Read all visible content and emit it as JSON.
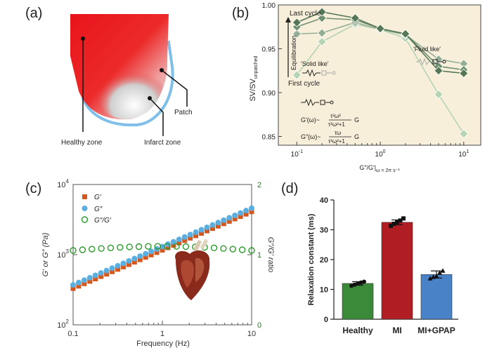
{
  "panels": {
    "a": {
      "label": "(a)",
      "healthy_zone": "Healthy zone",
      "infarct_zone": "Infarct zone",
      "patch": "Patch",
      "colors": {
        "healthy": "#e8141b",
        "infarct": "#dcdcdc",
        "patch": "#7fbfe8"
      }
    },
    "b": {
      "label": "(b)",
      "ylabel": "SV/SV",
      "ylabel_sub": "unpatched",
      "xlabel": "G″/G′|",
      "xlabel_sub": "ω = 2π s⁻¹",
      "last_cycle": "Last cycle",
      "first_cycle": "First cycle",
      "equilibration": "Equilibration",
      "solid_like": "'Solid like'",
      "fluid_like": "'Fluid like'",
      "eq1_lhs": "G′(ω)~",
      "eq1_num": "τ²ω²",
      "eq1_den": "τ²ω²+1",
      "eq1_rhs": "G",
      "eq2_lhs": "G″(ω)~",
      "eq2_num": "τω",
      "eq2_den": "τ²ω²+1",
      "eq2_rhs": "G",
      "yticks": [
        "0.85",
        "0.90",
        "0.95",
        "1.00"
      ],
      "background": "#f8efdb"
    },
    "c": {
      "label": "(c)",
      "ylabel_left": "G′ or G″ (Pa)",
      "ylabel_right": "G″/G′ ratio",
      "xlabel": "Frequency (Hz)",
      "xticks": [
        "0.1",
        "1",
        "10"
      ],
      "yticks_left_base": [
        "10",
        "10",
        "10"
      ],
      "yticks_left_exp": [
        "2",
        "3",
        "4"
      ],
      "yticks_right": [
        "0",
        "1",
        "2"
      ],
      "legend": [
        "G′",
        "G″",
        "G″/G′"
      ],
      "colors": {
        "gp": "#d4571e",
        "gpp": "#5aaee0",
        "ratio": "#2a9a2a",
        "axis": "#555555"
      }
    },
    "d": {
      "label": "(d)",
      "ylabel": "Relaxation constant (ms)",
      "yticks": [
        "0",
        "10",
        "20",
        "30",
        "40"
      ],
      "colors": [
        "#3a8a3a",
        "#b01e24",
        "#4a82c8"
      ]
    }
  },
  "chart_data": [
    {
      "panel": "b",
      "type": "line",
      "xscale": "log",
      "xlim": [
        0.06,
        16
      ],
      "ylim": [
        0.84,
        1.0
      ],
      "ylabel": "SV/SV unpatched",
      "xlabel": "G″/G′ | ω = 2π s⁻¹",
      "series": [
        {
          "x": [
            0.1,
            0.2,
            0.5,
            1,
            2,
            5,
            10
          ],
          "values": [
            0.98,
            0.992,
            0.985,
            0.973,
            0.967,
            0.925,
            0.922
          ],
          "color": "#557755"
        },
        {
          "x": [
            0.1,
            0.2,
            0.5,
            1,
            2,
            5,
            10
          ],
          "values": [
            0.975,
            0.985,
            0.983,
            0.973,
            0.967,
            0.93,
            0.926
          ],
          "color": "#6f8f6f"
        },
        {
          "x": [
            0.1,
            0.2,
            0.5,
            1,
            2,
            5,
            10
          ],
          "values": [
            0.967,
            0.968,
            0.98,
            0.972,
            0.966,
            0.938,
            0.933
          ],
          "color": "#94ae94"
        },
        {
          "x": [
            0.1,
            0.2,
            0.5,
            1,
            2,
            5,
            10
          ],
          "values": [
            0.92,
            0.958,
            0.978,
            0.972,
            0.962,
            0.898,
            0.853
          ],
          "color": "#b4d4b4"
        }
      ]
    },
    {
      "panel": "c",
      "type": "scatter",
      "xscale": "log",
      "xlim": [
        0.1,
        10
      ],
      "xlabel": "Frequency (Hz)",
      "ylabel_left": "G′ or G″ (Pa)",
      "ylabel_right": "G″/G′ ratio",
      "ylim_left": [
        100,
        10000
      ],
      "ylim_right": [
        0,
        2
      ],
      "series": [
        {
          "name": "G′",
          "x_range": [
            0.1,
            10
          ],
          "y_range": [
            330,
            4100
          ],
          "axis": "left",
          "points": 33
        },
        {
          "name": "G″",
          "x_range": [
            0.1,
            10
          ],
          "y_range": [
            370,
            4600
          ],
          "axis": "left",
          "points": 33
        },
        {
          "name": "G″/G′",
          "x_range": [
            0.1,
            10
          ],
          "y_range": [
            1.06,
            1.12
          ],
          "axis": "right",
          "points": 20
        }
      ]
    },
    {
      "panel": "d",
      "type": "bar",
      "categories": [
        "Healthy",
        "MI",
        "MI+GPAP"
      ],
      "values": [
        12,
        32.5,
        15
      ],
      "errors": [
        0.6,
        0.8,
        1.2
      ],
      "points": [
        [
          11.2,
          11.6,
          12.0,
          12.3,
          12.6
        ],
        [
          31.3,
          32.0,
          32.6,
          33.1,
          33.8
        ],
        [
          13.7,
          14.2,
          14.5,
          15.6,
          16.3
        ]
      ],
      "ylabel": "Relaxation constant (ms)",
      "ylim": [
        0,
        40
      ]
    }
  ]
}
